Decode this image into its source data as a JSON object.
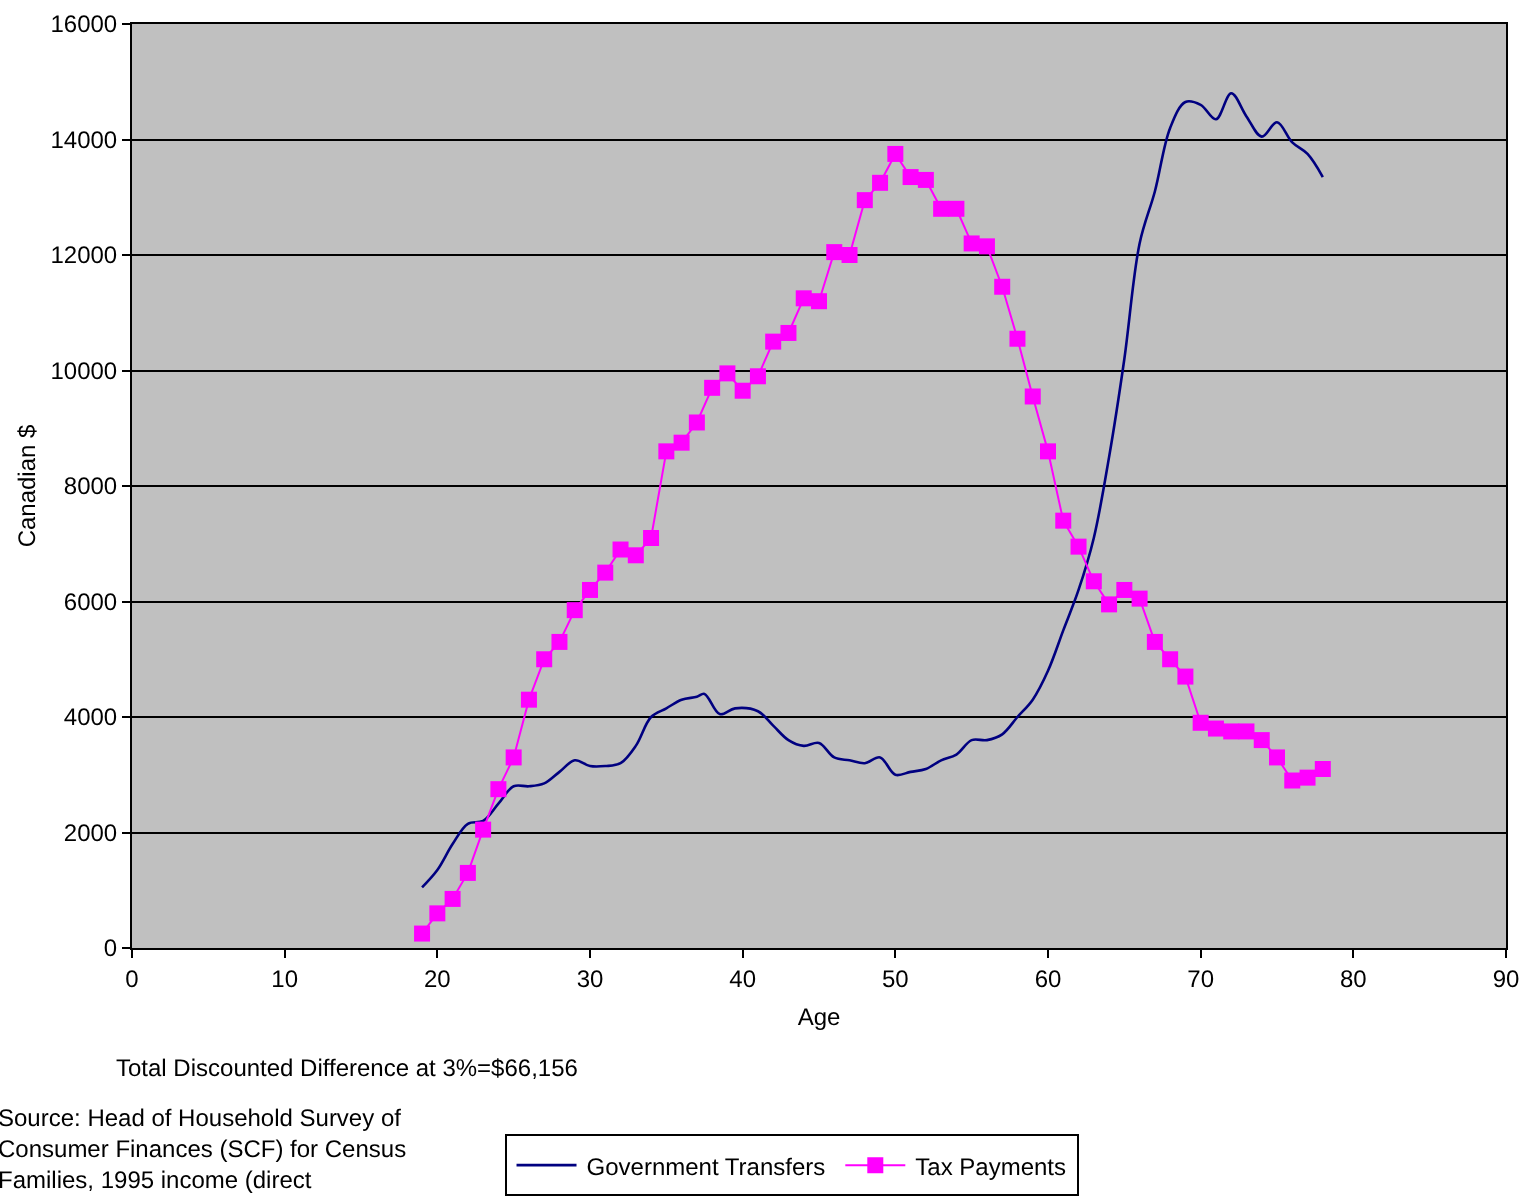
{
  "chart_data": {
    "type": "line",
    "xlabel": "Age",
    "ylabel": "Canadian $",
    "xlim": [
      0,
      90
    ],
    "xticks": [
      0,
      10,
      20,
      30,
      40,
      50,
      60,
      70,
      80,
      90
    ],
    "ylim": [
      0,
      16000
    ],
    "yticks": [
      0,
      2000,
      4000,
      6000,
      8000,
      10000,
      12000,
      14000,
      16000
    ],
    "grid": "y",
    "legend": "bottom",
    "annotations": [
      "Total Discounted Difference at 3%=$66,156",
      "Source: Head of Household Survey of\nConsumer Finances (SCF) for Census\nFamilies, 1995 income (direct"
    ],
    "series": [
      {
        "name": "Government Transfers",
        "color": "#000080",
        "marker": "none",
        "x": [
          19,
          20,
          21,
          22,
          23,
          24,
          25,
          26,
          27,
          28,
          29,
          30,
          31,
          32,
          33,
          34,
          35,
          36,
          37,
          37.5,
          38.5,
          39.5,
          41,
          42,
          43,
          44,
          45,
          46,
          47,
          48,
          49,
          50,
          51,
          52,
          53,
          54,
          55,
          56,
          57,
          58,
          59,
          60,
          61,
          62,
          63,
          64,
          65,
          66,
          67,
          68,
          69,
          70,
          71,
          72,
          73,
          74,
          75,
          76,
          77,
          78
        ],
        "values": [
          1050,
          1350,
          1800,
          2150,
          2200,
          2500,
          2800,
          2800,
          2850,
          3050,
          3250,
          3150,
          3150,
          3200,
          3500,
          4000,
          4150,
          4300,
          4350,
          4400,
          4050,
          4150,
          4100,
          3850,
          3600,
          3500,
          3550,
          3300,
          3250,
          3200,
          3300,
          3000,
          3050,
          3100,
          3250,
          3350,
          3600,
          3600,
          3700,
          4000,
          4300,
          4800,
          5500,
          6200,
          7100,
          8500,
          10200,
          12200,
          13100,
          14200,
          14650,
          14600,
          14350,
          14800,
          14400,
          14050,
          14300,
          13950,
          13750,
          13350
        ]
      },
      {
        "name": "Tax Payments",
        "color": "#ff00ff",
        "marker": "square",
        "x": [
          19,
          20,
          21,
          22,
          23,
          24,
          25,
          26,
          27,
          28,
          29,
          30,
          31,
          32,
          33,
          34,
          35,
          36,
          37,
          38,
          39,
          40,
          41,
          42,
          43,
          44,
          45,
          46,
          47,
          48,
          49,
          50,
          51,
          52,
          53,
          54,
          55,
          56,
          57,
          58,
          59,
          60,
          61,
          62,
          63,
          64,
          65,
          66,
          67,
          68,
          69,
          70,
          71,
          72,
          73,
          74,
          75,
          76,
          77,
          78
        ],
        "values": [
          250,
          600,
          850,
          1300,
          2050,
          2750,
          3300,
          4300,
          5000,
          5300,
          5850,
          6200,
          6500,
          6900,
          6800,
          7100,
          8600,
          8750,
          9100,
          9700,
          9950,
          9650,
          9900,
          10500,
          10650,
          11250,
          11200,
          12050,
          12000,
          12950,
          13250,
          13750,
          13350,
          13300,
          12800,
          12800,
          12200,
          12150,
          11450,
          10550,
          9550,
          8600,
          7400,
          6950,
          6350,
          5950,
          6200,
          6050,
          5300,
          5000,
          4700,
          3900,
          3800,
          3750,
          3750,
          3600,
          3300,
          2900,
          2950,
          3100
        ]
      }
    ]
  }
}
